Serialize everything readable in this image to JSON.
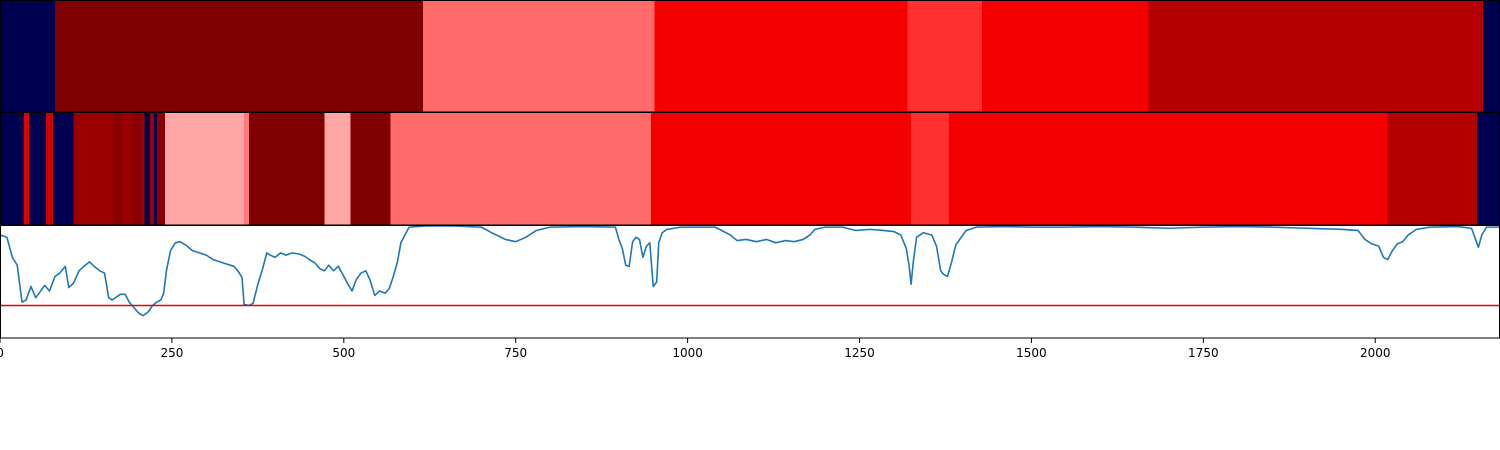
{
  "chart_data": [
    {
      "type": "heatmap",
      "name": "top-segmentation-track",
      "segments": [
        {
          "start": 0,
          "end": 80,
          "color": "#000050"
        },
        {
          "start": 80,
          "end": 615,
          "color": "#7f0000"
        },
        {
          "start": 615,
          "end": 952,
          "color": "#ff6a6a"
        },
        {
          "start": 952,
          "end": 1320,
          "color": "#f50000"
        },
        {
          "start": 1320,
          "end": 1428,
          "color": "#ff3030"
        },
        {
          "start": 1428,
          "end": 1670,
          "color": "#f50000"
        },
        {
          "start": 1670,
          "end": 2157,
          "color": "#b40000"
        },
        {
          "start": 2157,
          "end": 2180,
          "color": "#000050"
        }
      ]
    },
    {
      "type": "heatmap",
      "name": "middle-segmentation-track",
      "segments": [
        {
          "start": 0,
          "end": 35,
          "color": "#000050"
        },
        {
          "start": 35,
          "end": 42,
          "color": "#e00000"
        },
        {
          "start": 42,
          "end": 67,
          "color": "#000050"
        },
        {
          "start": 67,
          "end": 77,
          "color": "#d00000"
        },
        {
          "start": 77,
          "end": 107,
          "color": "#000050"
        },
        {
          "start": 107,
          "end": 165,
          "color": "#9a0000"
        },
        {
          "start": 165,
          "end": 178,
          "color": "#8a0000"
        },
        {
          "start": 178,
          "end": 193,
          "color": "#9a0000"
        },
        {
          "start": 193,
          "end": 205,
          "color": "#8a0000"
        },
        {
          "start": 205,
          "end": 210,
          "color": "#9a0000"
        },
        {
          "start": 210,
          "end": 218,
          "color": "#000050"
        },
        {
          "start": 218,
          "end": 224,
          "color": "#9a0000"
        },
        {
          "start": 224,
          "end": 228,
          "color": "#000050"
        },
        {
          "start": 228,
          "end": 240,
          "color": "#8a0000"
        },
        {
          "start": 240,
          "end": 355,
          "color": "#ffa6a6"
        },
        {
          "start": 355,
          "end": 362,
          "color": "#ff7a7a"
        },
        {
          "start": 362,
          "end": 472,
          "color": "#7f0000"
        },
        {
          "start": 472,
          "end": 510,
          "color": "#ffa6a6"
        },
        {
          "start": 510,
          "end": 568,
          "color": "#7f0000"
        },
        {
          "start": 568,
          "end": 947,
          "color": "#ff6a6a"
        },
        {
          "start": 947,
          "end": 1325,
          "color": "#f50000"
        },
        {
          "start": 1325,
          "end": 1380,
          "color": "#ff3030"
        },
        {
          "start": 1380,
          "end": 2018,
          "color": "#f50000"
        },
        {
          "start": 2018,
          "end": 2148,
          "color": "#b40000"
        },
        {
          "start": 2148,
          "end": 2180,
          "color": "#000050"
        }
      ]
    },
    {
      "type": "line",
      "name": "signal-trace",
      "line_color": "#1f77b4",
      "threshold": {
        "value": 0.29,
        "color": "#ee0000"
      },
      "xlim": [
        0,
        2180
      ],
      "ylim": [
        0,
        1
      ],
      "x_ticks": [
        0,
        250,
        500,
        750,
        1000,
        1250,
        1500,
        1750,
        2000
      ],
      "x_tick_labels": [
        "0",
        "250",
        "500",
        "750",
        "1000",
        "1250",
        "1500",
        "1750",
        "2000"
      ],
      "points": [
        [
          0,
          0.92
        ],
        [
          10,
          0.9
        ],
        [
          18,
          0.72
        ],
        [
          25,
          0.65
        ],
        [
          32,
          0.32
        ],
        [
          38,
          0.34
        ],
        [
          45,
          0.46
        ],
        [
          52,
          0.36
        ],
        [
          58,
          0.41
        ],
        [
          65,
          0.47
        ],
        [
          72,
          0.42
        ],
        [
          80,
          0.55
        ],
        [
          87,
          0.58
        ],
        [
          95,
          0.64
        ],
        [
          100,
          0.45
        ],
        [
          107,
          0.49
        ],
        [
          115,
          0.6
        ],
        [
          122,
          0.64
        ],
        [
          130,
          0.68
        ],
        [
          137,
          0.64
        ],
        [
          145,
          0.6
        ],
        [
          152,
          0.58
        ],
        [
          158,
          0.36
        ],
        [
          163,
          0.34
        ],
        [
          168,
          0.36
        ],
        [
          175,
          0.39
        ],
        [
          182,
          0.39
        ],
        [
          188,
          0.32
        ],
        [
          195,
          0.27
        ],
        [
          202,
          0.22
        ],
        [
          208,
          0.2
        ],
        [
          215,
          0.23
        ],
        [
          222,
          0.29
        ],
        [
          228,
          0.32
        ],
        [
          234,
          0.34
        ],
        [
          238,
          0.4
        ],
        [
          242,
          0.6
        ],
        [
          248,
          0.78
        ],
        [
          255,
          0.85
        ],
        [
          262,
          0.86
        ],
        [
          270,
          0.83
        ],
        [
          280,
          0.78
        ],
        [
          290,
          0.76
        ],
        [
          300,
          0.74
        ],
        [
          310,
          0.7
        ],
        [
          320,
          0.68
        ],
        [
          330,
          0.66
        ],
        [
          340,
          0.64
        ],
        [
          346,
          0.6
        ],
        [
          352,
          0.54
        ],
        [
          355,
          0.3
        ],
        [
          362,
          0.29
        ],
        [
          368,
          0.31
        ],
        [
          375,
          0.48
        ],
        [
          382,
          0.62
        ],
        [
          388,
          0.76
        ],
        [
          393,
          0.74
        ],
        [
          400,
          0.72
        ],
        [
          408,
          0.76
        ],
        [
          416,
          0.74
        ],
        [
          425,
          0.76
        ],
        [
          435,
          0.75
        ],
        [
          443,
          0.73
        ],
        [
          450,
          0.7
        ],
        [
          458,
          0.67
        ],
        [
          465,
          0.62
        ],
        [
          472,
          0.6
        ],
        [
          478,
          0.65
        ],
        [
          485,
          0.6
        ],
        [
          492,
          0.64
        ],
        [
          500,
          0.55
        ],
        [
          506,
          0.48
        ],
        [
          512,
          0.42
        ],
        [
          518,
          0.52
        ],
        [
          525,
          0.58
        ],
        [
          532,
          0.6
        ],
        [
          538,
          0.52
        ],
        [
          545,
          0.38
        ],
        [
          552,
          0.42
        ],
        [
          560,
          0.4
        ],
        [
          566,
          0.44
        ],
        [
          572,
          0.55
        ],
        [
          578,
          0.68
        ],
        [
          583,
          0.85
        ],
        [
          588,
          0.91
        ],
        [
          595,
          0.99
        ],
        [
          620,
          1.0
        ],
        [
          660,
          1.0
        ],
        [
          700,
          0.99
        ],
        [
          715,
          0.94
        ],
        [
          735,
          0.88
        ],
        [
          750,
          0.86
        ],
        [
          765,
          0.9
        ],
        [
          780,
          0.96
        ],
        [
          800,
          0.99
        ],
        [
          850,
          0.995
        ],
        [
          895,
          0.99
        ],
        [
          900,
          0.88
        ],
        [
          905,
          0.8
        ],
        [
          910,
          0.65
        ],
        [
          915,
          0.64
        ],
        [
          920,
          0.86
        ],
        [
          925,
          0.9
        ],
        [
          930,
          0.88
        ],
        [
          935,
          0.72
        ],
        [
          940,
          0.82
        ],
        [
          945,
          0.85
        ],
        [
          950,
          0.46
        ],
        [
          955,
          0.5
        ],
        [
          958,
          0.85
        ],
        [
          963,
          0.94
        ],
        [
          970,
          0.97
        ],
        [
          990,
          0.99
        ],
        [
          1040,
          0.99
        ],
        [
          1062,
          0.92
        ],
        [
          1072,
          0.87
        ],
        [
          1085,
          0.88
        ],
        [
          1100,
          0.86
        ],
        [
          1115,
          0.88
        ],
        [
          1128,
          0.85
        ],
        [
          1142,
          0.87
        ],
        [
          1155,
          0.86
        ],
        [
          1168,
          0.88
        ],
        [
          1178,
          0.92
        ],
        [
          1185,
          0.97
        ],
        [
          1200,
          0.99
        ],
        [
          1225,
          0.99
        ],
        [
          1245,
          0.96
        ],
        [
          1265,
          0.97
        ],
        [
          1285,
          0.96
        ],
        [
          1300,
          0.95
        ],
        [
          1310,
          0.92
        ],
        [
          1318,
          0.8
        ],
        [
          1322,
          0.65
        ],
        [
          1325,
          0.48
        ],
        [
          1328,
          0.67
        ],
        [
          1333,
          0.9
        ],
        [
          1343,
          0.94
        ],
        [
          1355,
          0.92
        ],
        [
          1362,
          0.82
        ],
        [
          1368,
          0.6
        ],
        [
          1372,
          0.57
        ],
        [
          1378,
          0.55
        ],
        [
          1384,
          0.68
        ],
        [
          1390,
          0.83
        ],
        [
          1398,
          0.9
        ],
        [
          1405,
          0.96
        ],
        [
          1420,
          0.99
        ],
        [
          1460,
          0.995
        ],
        [
          1500,
          0.99
        ],
        [
          1550,
          0.99
        ],
        [
          1600,
          0.995
        ],
        [
          1650,
          0.99
        ],
        [
          1700,
          0.98
        ],
        [
          1750,
          0.99
        ],
        [
          1800,
          0.995
        ],
        [
          1850,
          0.99
        ],
        [
          1900,
          0.98
        ],
        [
          1950,
          0.97
        ],
        [
          1975,
          0.96
        ],
        [
          1985,
          0.88
        ],
        [
          1995,
          0.84
        ],
        [
          2005,
          0.82
        ],
        [
          2012,
          0.72
        ],
        [
          2018,
          0.7
        ],
        [
          2025,
          0.78
        ],
        [
          2032,
          0.84
        ],
        [
          2040,
          0.86
        ],
        [
          2048,
          0.92
        ],
        [
          2060,
          0.97
        ],
        [
          2080,
          0.99
        ],
        [
          2120,
          0.995
        ],
        [
          2140,
          0.98
        ],
        [
          2146,
          0.88
        ],
        [
          2150,
          0.81
        ],
        [
          2155,
          0.92
        ],
        [
          2162,
          0.99
        ],
        [
          2180,
          0.99
        ]
      ]
    }
  ]
}
